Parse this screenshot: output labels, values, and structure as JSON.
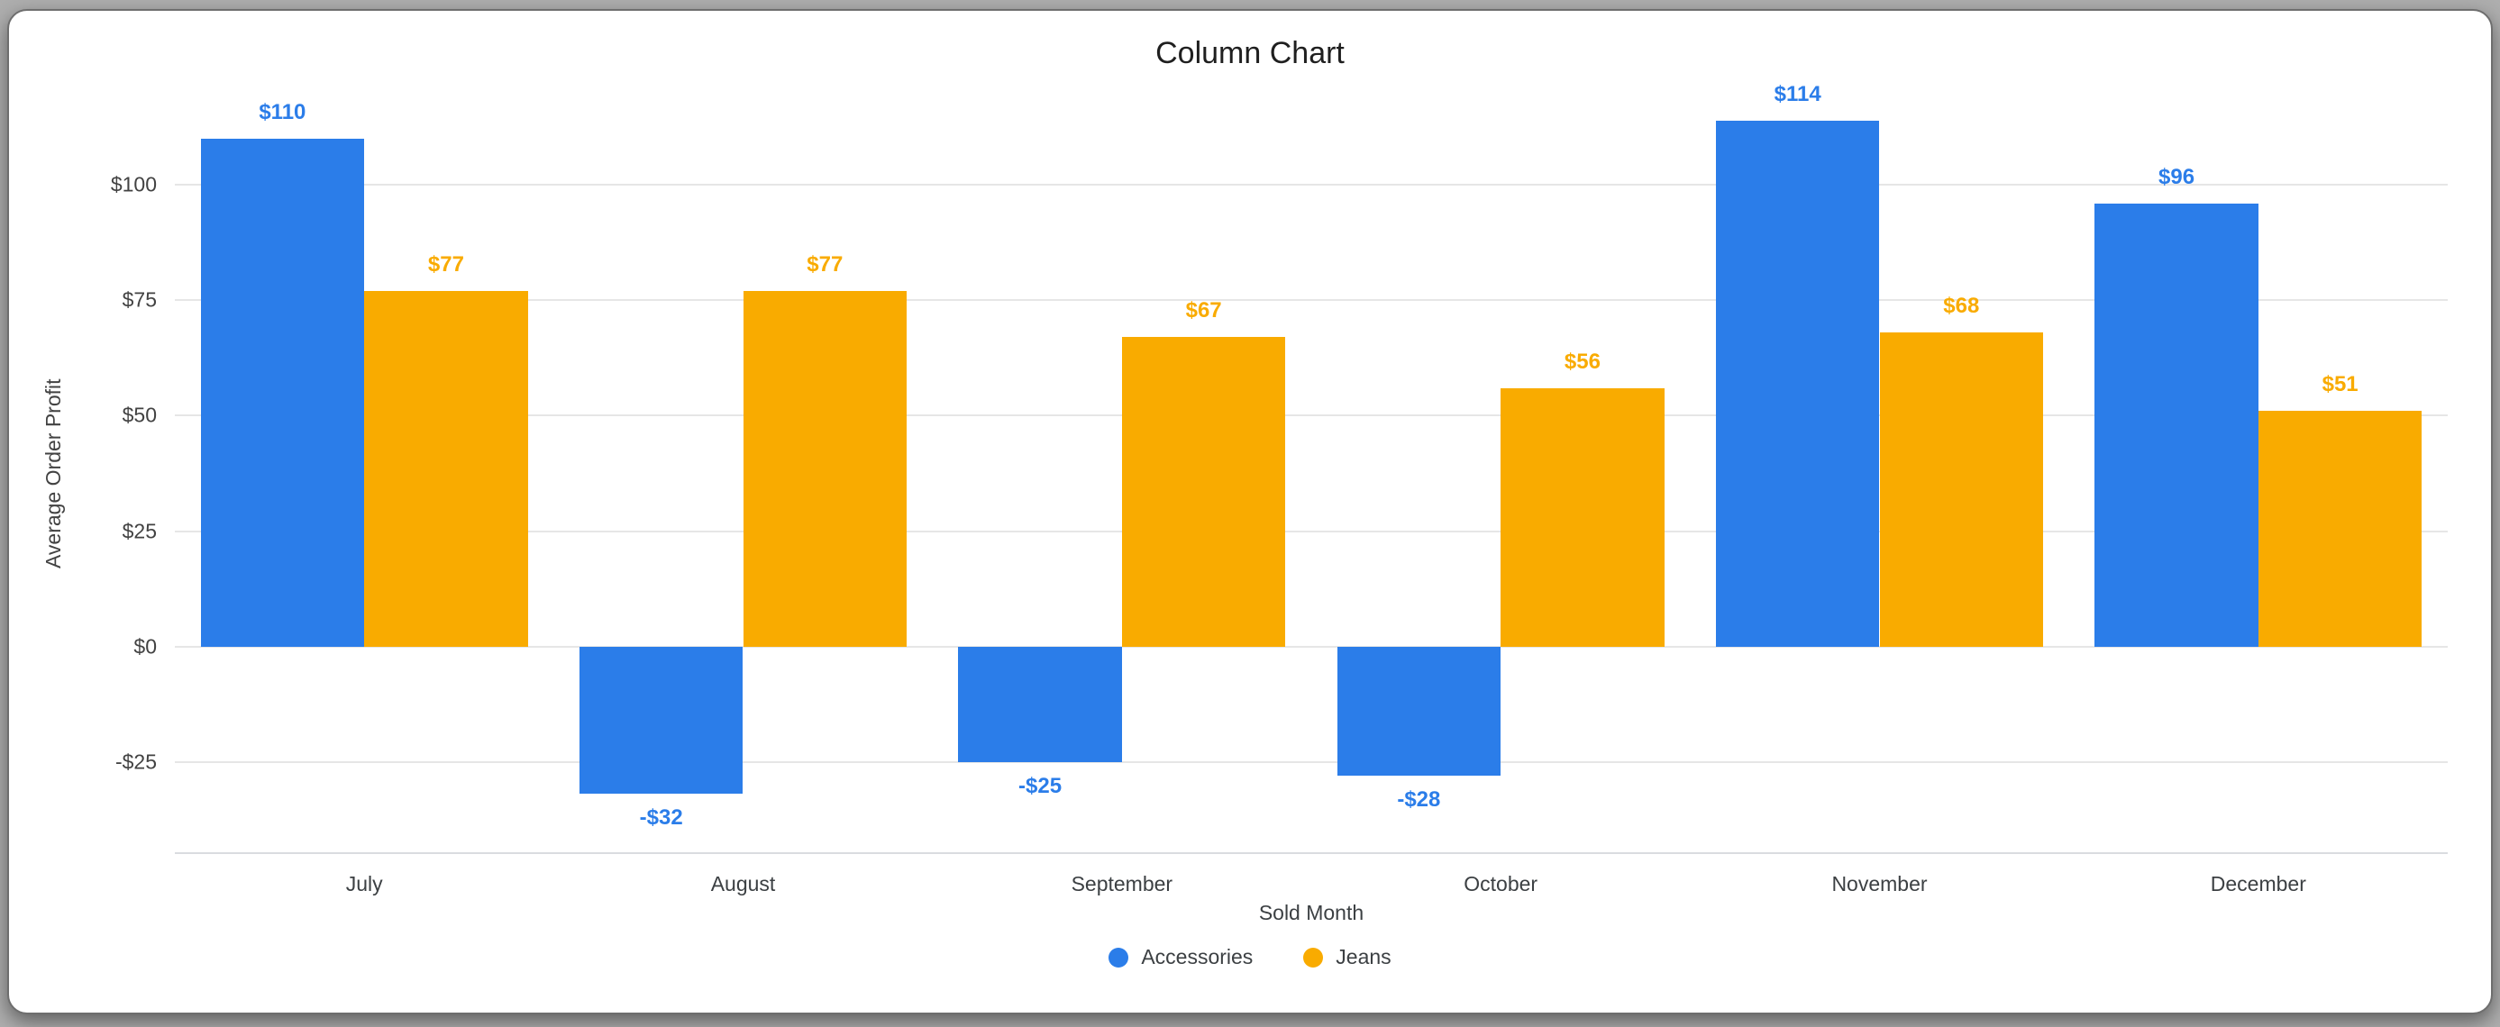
{
  "chart_data": {
    "type": "bar",
    "title": "Column Chart",
    "xlabel": "Sold Month",
    "ylabel": "Average Order Profit",
    "categories": [
      "July",
      "August",
      "September",
      "October",
      "November",
      "December"
    ],
    "series": [
      {
        "name": "Accessories",
        "color": "#2b7de9",
        "values": [
          110,
          -32,
          -25,
          -28,
          114,
          96
        ],
        "labels": [
          "$110",
          "-$32",
          "-$25",
          "-$28",
          "$114",
          "$96"
        ]
      },
      {
        "name": "Jeans",
        "color": "#f9ab00",
        "values": [
          77,
          77,
          67,
          56,
          68,
          51
        ],
        "labels": [
          "$77",
          "$77",
          "$67",
          "$56",
          "$68",
          "$51"
        ]
      }
    ],
    "yticks": [
      {
        "value": -25,
        "label": "-$25"
      },
      {
        "value": 0,
        "label": "$0"
      },
      {
        "value": 25,
        "label": "$25"
      },
      {
        "value": 50,
        "label": "$50"
      },
      {
        "value": 75,
        "label": "$75"
      },
      {
        "value": 100,
        "label": "$100"
      }
    ],
    "ylim": [
      -45,
      120
    ],
    "grid": true,
    "legend_position": "bottom",
    "colors": {
      "grid": "#e6e6e6",
      "axis": "#dadce0",
      "text": "#3c4043"
    }
  }
}
